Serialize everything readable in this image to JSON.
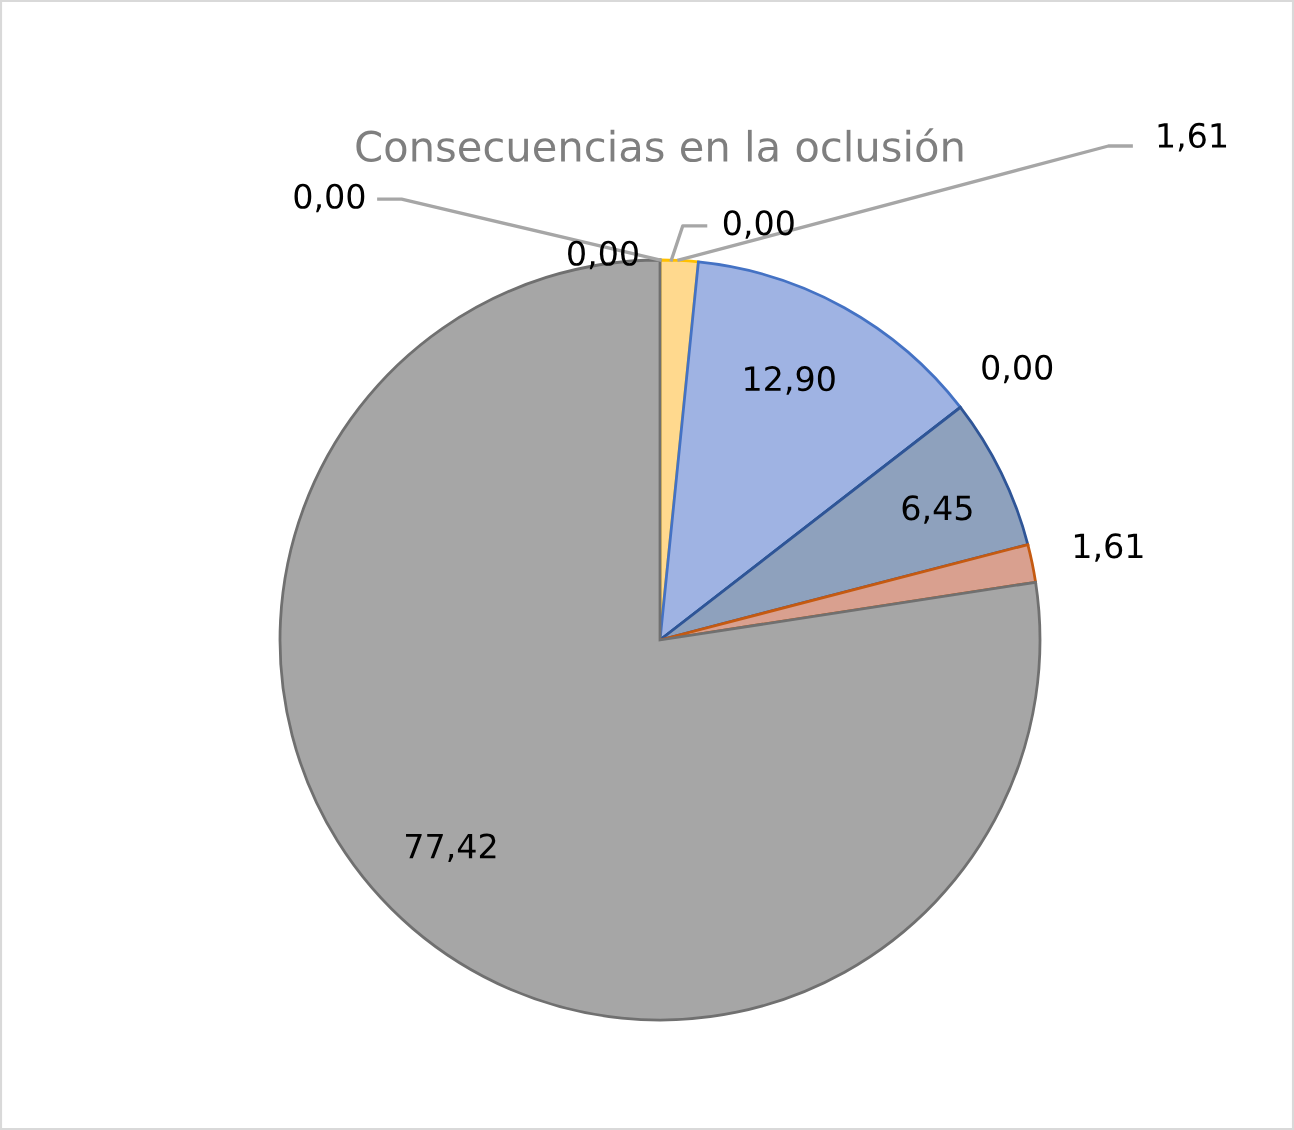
{
  "chart_data": {
    "type": "pie",
    "title": "Consecuencias en la oclusión",
    "categories": [
      null,
      null,
      null,
      null,
      null,
      null,
      null,
      null,
      null
    ],
    "values": [
      0,
      0,
      0,
      1.61,
      12.9,
      0,
      6.45,
      1.61,
      77.42
    ],
    "colors": [
      "#5b9bd5",
      "#ed7d31",
      "#a5a5a5",
      "#ffd98e",
      "#9fb3e3",
      "#4472c4",
      "#8ea1bd",
      "#d9a08f",
      "#a6a6a6"
    ],
    "value_labels": [
      "0,00",
      "0,00",
      "0,00",
      "1,61",
      "12,90",
      "0,00",
      "6,45",
      "1,61",
      "77,42"
    ]
  }
}
